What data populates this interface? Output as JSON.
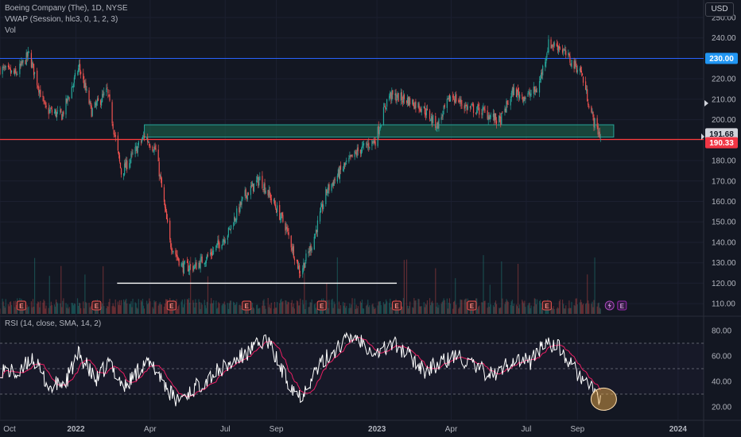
{
  "legend": {
    "title": "Boeing Company (The), 1D, NYSE",
    "vwap": "VWAP (Session, hlc3, 0, 1, 2, 3)",
    "vol": "Vol"
  },
  "rsi_legend": "RSI (14, close, SMA, 14, 2)",
  "currency": "USD",
  "colors": {
    "background": "#131722",
    "up": "#26a69a",
    "down": "#ef5350",
    "rsi_line": "#ffffff",
    "rsi_ma": "#e91e63",
    "resistance_line": "#2962ff",
    "support_line": "#ff3b3b",
    "zone_fill": "#1e6b50",
    "zone_border": "#26a69a"
  },
  "price_labels": {
    "resistance": "230.00",
    "last_price": "191.68",
    "support": "190.33"
  },
  "earnings_marker": "E",
  "chart_data": [
    {
      "type": "candlestick",
      "title": "Boeing Company (The), 1D, NYSE",
      "x_range": [
        "2021-10-01",
        "2024-02-01"
      ],
      "ylim": [
        105,
        250
      ],
      "y_ticks": [
        "110.00",
        "120.00",
        "130.00",
        "140.00",
        "150.00",
        "160.00",
        "170.00",
        "180.00",
        "190.00",
        "200.00",
        "210.00",
        "220.00",
        "230.00",
        "240.00",
        "250.00"
      ],
      "x_ticks": [
        "Oct",
        "2022",
        "Apr",
        "Jul",
        "Sep",
        "2023",
        "Apr",
        "Jul",
        "Sep",
        "2024"
      ],
      "x_tick_dates": [
        "2021-10-01",
        "2022-01-01",
        "2022-04-01",
        "2022-07-01",
        "2022-09-01",
        "2023-01-01",
        "2023-04-01",
        "2023-07-01",
        "2023-09-01",
        "2024-01-01"
      ],
      "anchors": [
        [
          "2021-10-01",
          225
        ],
        [
          "2021-10-20",
          222
        ],
        [
          "2021-11-05",
          232
        ],
        [
          "2021-11-25",
          205
        ],
        [
          "2021-12-15",
          202
        ],
        [
          "2022-01-05",
          226
        ],
        [
          "2022-01-20",
          204
        ],
        [
          "2022-02-08",
          214
        ],
        [
          "2022-02-25",
          174
        ],
        [
          "2022-03-10",
          182
        ],
        [
          "2022-03-25",
          192
        ],
        [
          "2022-04-08",
          185
        ],
        [
          "2022-04-25",
          140
        ],
        [
          "2022-05-10",
          128
        ],
        [
          "2022-05-25",
          128
        ],
        [
          "2022-06-15",
          135
        ],
        [
          "2022-07-05",
          145
        ],
        [
          "2022-07-25",
          163
        ],
        [
          "2022-08-12",
          171
        ],
        [
          "2022-08-25",
          162
        ],
        [
          "2022-09-12",
          148
        ],
        [
          "2022-09-30",
          125
        ],
        [
          "2022-10-15",
          140
        ],
        [
          "2022-11-01",
          165
        ],
        [
          "2022-11-20",
          176
        ],
        [
          "2022-12-10",
          185
        ],
        [
          "2022-12-30",
          190
        ],
        [
          "2023-01-15",
          212
        ],
        [
          "2023-02-05",
          210
        ],
        [
          "2023-02-25",
          206
        ],
        [
          "2023-03-15",
          197
        ],
        [
          "2023-04-01",
          212
        ],
        [
          "2023-04-20",
          206
        ],
        [
          "2023-05-10",
          204
        ],
        [
          "2023-05-30",
          199
        ],
        [
          "2023-06-15",
          214
        ],
        [
          "2023-06-30",
          211
        ],
        [
          "2023-07-15",
          215
        ],
        [
          "2023-07-28",
          237
        ],
        [
          "2023-08-10",
          236
        ],
        [
          "2023-08-25",
          228
        ],
        [
          "2023-09-05",
          224
        ],
        [
          "2023-09-20",
          200
        ],
        [
          "2023-10-01",
          190
        ]
      ],
      "resistance_line": 230,
      "support_line": 190.33,
      "last_price": 191.68,
      "demand_zone": {
        "x": [
          "2022-03-25",
          "2023-10-15"
        ],
        "y": [
          191.5,
          197.5
        ]
      },
      "support_segment": {
        "x": [
          "2022-02-20",
          "2023-01-25"
        ],
        "y": 120
      },
      "earnings_dates": [
        "2021-10-27",
        "2022-01-26",
        "2022-04-27",
        "2022-07-27",
        "2022-10-26",
        "2023-01-25",
        "2023-04-26",
        "2023-07-26",
        "2023-10-25"
      ]
    },
    {
      "type": "line",
      "title": "RSI (14, close, SMA, 14, 2)",
      "ylim": [
        10,
        90
      ],
      "y_ticks": [
        "20.00",
        "40.00",
        "60.00",
        "80.00"
      ],
      "bands": [
        30,
        50,
        70
      ],
      "anchors": [
        [
          "2021-10-01",
          50
        ],
        [
          "2021-10-25",
          45
        ],
        [
          "2021-11-08",
          60
        ],
        [
          "2021-11-30",
          35
        ],
        [
          "2021-12-20",
          40
        ],
        [
          "2022-01-05",
          62
        ],
        [
          "2022-01-25",
          40
        ],
        [
          "2022-02-10",
          55
        ],
        [
          "2022-03-01",
          35
        ],
        [
          "2022-03-25",
          55
        ],
        [
          "2022-04-10",
          48
        ],
        [
          "2022-05-01",
          25
        ],
        [
          "2022-05-20",
          32
        ],
        [
          "2022-06-15",
          45
        ],
        [
          "2022-07-10",
          55
        ],
        [
          "2022-08-05",
          66
        ],
        [
          "2022-08-20",
          74
        ],
        [
          "2022-09-10",
          45
        ],
        [
          "2022-09-30",
          28
        ],
        [
          "2022-10-20",
          50
        ],
        [
          "2022-11-15",
          68
        ],
        [
          "2022-12-05",
          76
        ],
        [
          "2023-01-01",
          62
        ],
        [
          "2023-01-20",
          70
        ],
        [
          "2023-02-10",
          60
        ],
        [
          "2023-03-01",
          48
        ],
        [
          "2023-03-20",
          55
        ],
        [
          "2023-04-10",
          60
        ],
        [
          "2023-05-01",
          50
        ],
        [
          "2023-05-25",
          45
        ],
        [
          "2023-06-15",
          58
        ],
        [
          "2023-07-05",
          55
        ],
        [
          "2023-07-25",
          72
        ],
        [
          "2023-08-10",
          66
        ],
        [
          "2023-08-25",
          52
        ],
        [
          "2023-09-10",
          40
        ],
        [
          "2023-09-25",
          28
        ],
        [
          "2023-10-01",
          25
        ]
      ],
      "highlight_circle": {
        "x": "2023-10-01",
        "y": 26
      }
    }
  ]
}
